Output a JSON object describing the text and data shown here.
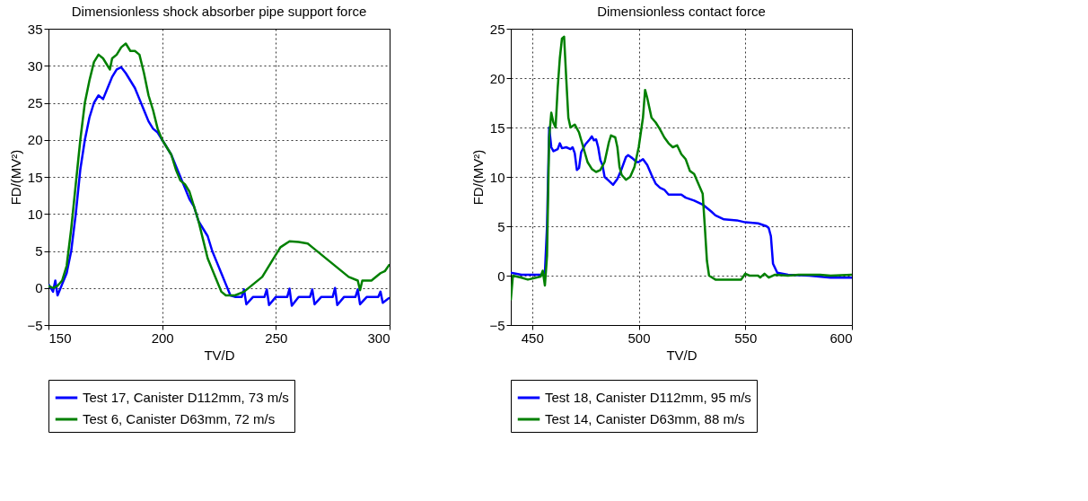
{
  "chart_data": [
    {
      "type": "line",
      "title": "Dimensionless shock absorber pipe support force",
      "xlabel": "TV/D",
      "ylabel": "FD/(MV²)",
      "xlim": [
        150,
        300
      ],
      "ylim": [
        -5,
        35
      ],
      "xticks": [
        150,
        200,
        250,
        300
      ],
      "yticks": [
        -5,
        0,
        5,
        10,
        15,
        20,
        25,
        30,
        35
      ],
      "grid": true,
      "legend": "bottom",
      "line_style": "solid",
      "series": [
        {
          "name": "Test 17, Canister D112mm, 73 m/s",
          "color": "#0000ff",
          "x": [
            150,
            152,
            153,
            154,
            156,
            158,
            160,
            162,
            164,
            166,
            168,
            170,
            172,
            174,
            176,
            178,
            180,
            182,
            184,
            186,
            188,
            190,
            192,
            194,
            196,
            198,
            200,
            202,
            204,
            206,
            208,
            210,
            212,
            214,
            216,
            218,
            220,
            222,
            224,
            226,
            228,
            230,
            232,
            235,
            236,
            237,
            240,
            245,
            246,
            247,
            250,
            255,
            256,
            257,
            260,
            265,
            266,
            267,
            270,
            275,
            276,
            277,
            280,
            285,
            286,
            287,
            290,
            295,
            296,
            297,
            300
          ],
          "values": [
            0.5,
            -0.5,
            1,
            -1,
            0.5,
            2,
            5,
            10,
            16,
            20,
            23,
            25,
            26,
            25.5,
            27,
            28.5,
            29.5,
            29.8,
            29,
            28,
            27,
            25.5,
            24,
            22.5,
            21.5,
            21,
            20,
            19,
            18,
            16.5,
            15,
            13.5,
            12,
            11,
            9,
            8,
            7,
            5,
            3.5,
            2,
            0.5,
            -1,
            -1.2,
            -1.2,
            -0.2,
            -2.2,
            -1.2,
            -1.2,
            -0.2,
            -2.3,
            -1.2,
            -1.2,
            -0.1,
            -2.4,
            -1.2,
            -1.2,
            -0.2,
            -2.2,
            -1.2,
            -1.2,
            0,
            -2.3,
            -1.2,
            -1.2,
            -0.2,
            -2.2,
            -1.2,
            -1.2,
            -0.5,
            -2,
            -1.3
          ]
        },
        {
          "name": "Test 6, Canister D63mm, 72 m/s",
          "color": "#008000",
          "x": [
            150,
            152,
            154,
            156,
            158,
            160,
            162,
            164,
            166,
            168,
            170,
            172,
            174,
            176,
            177,
            178,
            180,
            182,
            184,
            186,
            188,
            190,
            192,
            194,
            196,
            198,
            200,
            202,
            204,
            206,
            208,
            210,
            212,
            214,
            216,
            218,
            220,
            222,
            224,
            226,
            228,
            232,
            236,
            240,
            244,
            248,
            250,
            252,
            256,
            260,
            264,
            266,
            270,
            274,
            278,
            282,
            286,
            287,
            288,
            292,
            296,
            298,
            300
          ],
          "values": [
            0.3,
            0,
            0.3,
            1,
            3,
            8,
            14,
            20,
            25,
            28,
            30.5,
            31.5,
            31,
            30,
            29.5,
            31,
            31.5,
            32.5,
            33,
            32,
            32,
            31.5,
            29,
            26,
            24,
            21.5,
            20,
            19,
            18,
            16,
            14.5,
            14,
            13,
            11,
            9,
            6.5,
            4,
            2.5,
            1,
            -0.5,
            -1,
            -1,
            -0.5,
            0.5,
            1.5,
            3.5,
            4.5,
            5.5,
            6.3,
            6.2,
            6,
            5.5,
            4.5,
            3.5,
            2.5,
            1.5,
            1,
            -0.3,
            1,
            1,
            2,
            2.3,
            3.2
          ]
        }
      ]
    },
    {
      "type": "line",
      "title": "Dimensionless contact force",
      "xlabel": "TV/D",
      "ylabel": "FD/(MV²)",
      "xlim": [
        440,
        600
      ],
      "ylim": [
        -5,
        25
      ],
      "xticks": [
        450,
        500,
        550,
        600
      ],
      "yticks": [
        -5,
        0,
        5,
        10,
        15,
        20,
        25
      ],
      "grid": true,
      "legend": "bottom",
      "line_style": "solid",
      "series": [
        {
          "name": "Test 18, Canister D112mm, 95 m/s",
          "color": "#0000ff",
          "x": [
            440,
            445,
            450,
            455,
            456,
            457,
            458,
            459,
            460,
            462,
            463,
            464,
            466,
            468,
            469,
            470,
            471,
            472,
            473,
            475,
            477,
            478,
            479,
            480,
            481,
            482,
            483,
            484,
            486,
            488,
            490,
            492,
            494,
            495,
            497,
            499,
            500,
            502,
            504,
            506,
            508,
            510,
            512,
            514,
            520,
            522,
            526,
            530,
            534,
            536,
            540,
            546,
            550,
            556,
            560,
            561,
            562,
            563,
            565,
            570,
            580,
            590,
            600
          ],
          "values": [
            0.3,
            0.1,
            0.1,
            0.1,
            0.3,
            5,
            15,
            13,
            12.6,
            12.8,
            13.4,
            12.9,
            13,
            12.8,
            13,
            12.4,
            10.7,
            10.9,
            12.5,
            13.3,
            13.8,
            14.1,
            13.7,
            13.8,
            13,
            11.7,
            11.2,
            10,
            9.6,
            9.2,
            9.8,
            10.8,
            12,
            12.2,
            11.9,
            11.5,
            11.5,
            11.8,
            11.2,
            10.2,
            9.3,
            8.9,
            8.7,
            8.2,
            8.2,
            7.9,
            7.6,
            7.2,
            6.5,
            6.1,
            5.7,
            5.6,
            5.4,
            5.3,
            5,
            4.8,
            4,
            1.2,
            0.3,
            0.1,
            0,
            -0.2,
            -0.2
          ]
        },
        {
          "name": "Test 14, Canister D63mm, 88 m/s",
          "color": "#008000",
          "x": [
            440,
            441,
            445,
            448,
            450,
            454,
            455,
            456,
            457,
            458,
            459,
            460,
            461,
            462,
            463,
            464,
            465,
            466,
            467,
            468,
            470,
            472,
            474,
            476,
            478,
            480,
            482,
            484,
            486,
            487,
            489,
            490,
            491,
            492,
            494,
            496,
            498,
            500,
            502,
            503,
            504,
            506,
            508,
            510,
            512,
            514,
            516,
            518,
            520,
            522,
            524,
            526,
            530,
            531,
            532,
            533,
            536,
            548,
            550,
            552,
            556,
            557,
            559,
            561,
            564,
            570,
            575,
            585,
            590,
            600
          ],
          "values": [
            -2.5,
            0,
            -0.2,
            -0.4,
            -0.3,
            -0.1,
            0.5,
            -1,
            2,
            14,
            16.5,
            15.5,
            15,
            19,
            22,
            24,
            24.2,
            20,
            16,
            15,
            15.3,
            14.5,
            13,
            11.5,
            10.8,
            10.5,
            10.7,
            11.5,
            13.5,
            14.2,
            14,
            13,
            11,
            10.2,
            9.7,
            10,
            11,
            13,
            16,
            18.8,
            18,
            16,
            15.5,
            14.8,
            14,
            13.4,
            13,
            13.2,
            12.3,
            11.8,
            10.6,
            10.3,
            8.3,
            5,
            1.5,
            0,
            -0.4,
            -0.4,
            0.2,
            0,
            0,
            -0.2,
            0.2,
            -0.2,
            0.1,
            0,
            0.1,
            0.1,
            0,
            0.1
          ]
        }
      ]
    }
  ]
}
